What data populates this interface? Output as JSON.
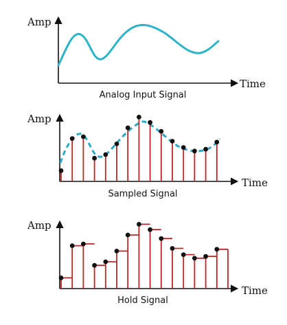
{
  "panels": [
    {
      "id": "analog",
      "y_label": "Amp",
      "x_label": "Time",
      "caption": "Analog Input Signal"
    },
    {
      "id": "sampled",
      "y_label": "Amp",
      "x_label": "Time",
      "caption": "Sampled Signal"
    },
    {
      "id": "hold",
      "y_label": "Amp",
      "x_label": "Time",
      "caption": "Hold Signal"
    }
  ],
  "colors": {
    "analog_wave": "#2bb3c8",
    "sampled_wave": "#2aa9c4",
    "stem": "#b8262a",
    "dot": "#111111",
    "axis": "#111111"
  },
  "sample_levels": [
    0.12,
    0.48,
    0.5,
    0.26,
    0.3,
    0.42,
    0.6,
    0.72,
    0.66,
    0.56,
    0.45,
    0.38,
    0.34,
    0.36,
    0.44
  ]
}
